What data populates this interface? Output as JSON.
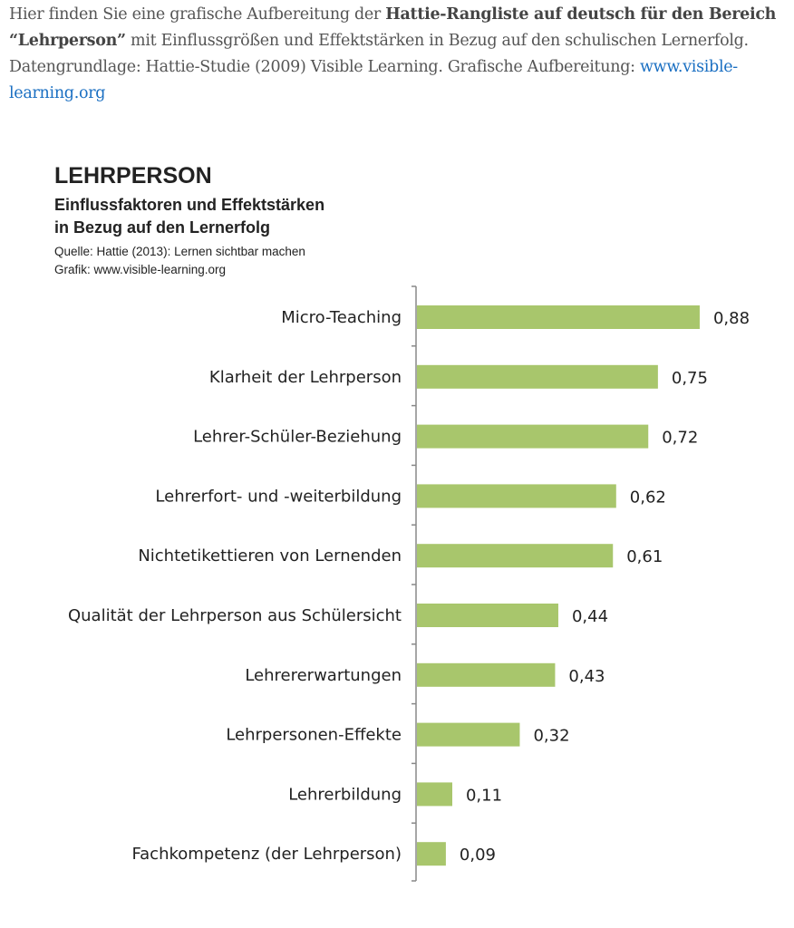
{
  "intro": {
    "text1": "Hier finden Sie eine grafische Aufbereitung der ",
    "bold": "Hattie-Rangliste auf deutsch für den Bereich “Lehrperson”",
    "text2": " mit Einflussgrößen und Effektstärken in Bezug auf den schulischen Lernerfolg. Datengrundlage: Hattie-Studie (2009) Visible Learning. Grafische Aufbereitung: ",
    "link": "www.visible-learning.org"
  },
  "chart_data": {
    "type": "bar",
    "orientation": "horizontal",
    "title": "LEHRPERSON",
    "subtitle_line1": "Einflussfaktoren und Effektstärken",
    "subtitle_line2": "in Bezug auf den Lernerfolg",
    "source": "Quelle: Hattie (2013): Lernen sichtbar machen",
    "credit": "Grafik: www.visible-learning.org",
    "categories": [
      "Micro-Teaching",
      "Klarheit der Lehrperson",
      "Lehrer-Schüler-Beziehung",
      "Lehrerfort- und -weiterbildung",
      "Nichtetikettieren von Lernenden",
      "Qualität der Lehrperson aus Schülersicht",
      "Lehrererwartungen",
      "Lehrpersonen-Effekte",
      "Lehrerbildung",
      "Fachkompetenz (der Lehrperson)"
    ],
    "values": [
      0.88,
      0.75,
      0.72,
      0.62,
      0.61,
      0.44,
      0.43,
      0.32,
      0.11,
      0.09
    ],
    "value_labels": [
      "0,88",
      "0,75",
      "0,72",
      "0,62",
      "0,61",
      "0,44",
      "0,43",
      "0,32",
      "0,11",
      "0,09"
    ],
    "xlim": [
      0,
      1
    ],
    "bar_color": "#a8c66c",
    "grid": false
  }
}
